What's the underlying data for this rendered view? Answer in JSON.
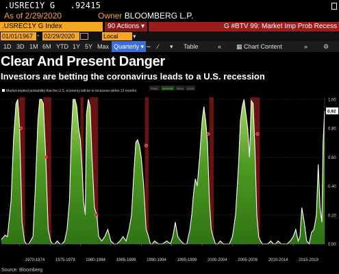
{
  "header": {
    "ticker": ".USREC1Y G",
    "value": ".92415",
    "as_of": "As of 2/29/2020",
    "owner_label": "Owner",
    "owner": "BLOOMBERG L.P."
  },
  "command_bar": {
    "security": ".USREC1Y G Index",
    "actions": "90 Actions",
    "function": "G #BTV 99: Market Imp Prob Recess"
  },
  "dates": {
    "start": "01/01/1967",
    "end": "02/29/2020",
    "currency": "Local CCY"
  },
  "toolbar": {
    "periods": [
      "1D",
      "3D",
      "1M",
      "6M",
      "YTD",
      "1Y",
      "5Y",
      "Max"
    ],
    "frequency": "Quarterly",
    "table": "Table",
    "chart_content": "Chart Content"
  },
  "headline": "Clear And Present Danger",
  "subheadline": "Investors are betting the coronavirus leads to a U.S. recession",
  "legend": {
    "main": "Market-implied probability that the U.S. economy will be in recession within 12 months",
    "tools": [
      "Track",
      "Annotate",
      "News",
      "Zoom"
    ]
  },
  "chart_data": {
    "type": "area",
    "x_ticks": [
      "1970-1974",
      "1975-1979",
      "1980-1984",
      "1985-1989",
      "1990-1994",
      "1995-1999",
      "2000-2004",
      "2005-2009",
      "2010-2014",
      "2015-2019"
    ],
    "y_ticks": [
      "1.00",
      "0.80",
      "0.60",
      "0.40",
      "0.20",
      "0.00"
    ],
    "ylim": [
      0,
      1
    ],
    "last_value_label": "0.92",
    "recessions": [
      [
        1969.9,
        1970.9
      ],
      [
        1973.9,
        1975.2
      ],
      [
        1980.0,
        1980.5
      ],
      [
        1981.5,
        1982.9
      ],
      [
        1990.6,
        1991.2
      ],
      [
        2001.2,
        2001.9
      ],
      [
        2007.9,
        2009.5
      ]
    ],
    "series": [
      {
        "x": [
          1967.0,
          1967.6,
          1968.0,
          1968.6,
          1969.0,
          1969.4,
          1969.7,
          1970.0,
          1970.4,
          1970.8,
          1971.1,
          1971.5,
          1971.8,
          1972.2,
          1972.6,
          1973.0,
          1973.3,
          1973.6,
          1973.9,
          1974.3,
          1974.7,
          1975.1,
          1975.4,
          1975.8,
          1976.2,
          1976.6,
          1977.0,
          1977.4,
          1977.8,
          1978.2,
          1978.5,
          1978.8,
          1979.1,
          1979.4,
          1979.7,
          1980.0,
          1980.3,
          1980.5,
          1980.8,
          1981.0,
          1981.3,
          1981.6,
          1981.9,
          1982.3,
          1982.7,
          1983.0,
          1983.5,
          1984.0,
          1984.5,
          1985.0,
          1985.5,
          1986.0,
          1986.5,
          1987.0,
          1987.5,
          1988.0,
          1988.4,
          1988.8,
          1989.1,
          1989.4,
          1989.7,
          1990.0,
          1990.4,
          1990.8,
          1991.2,
          1991.5,
          1991.8,
          1992.2,
          1992.8,
          1993.5,
          1994.2,
          1994.8,
          1995.2,
          1995.6,
          1996.0,
          1996.5,
          1997.0,
          1997.5,
          1998.0,
          1998.3,
          1998.6,
          1998.9,
          1999.2,
          1999.6,
          2000.0,
          2000.3,
          2000.6,
          2000.9,
          2001.2,
          2001.5,
          2001.8,
          2002.2,
          2002.6,
          2003.0,
          2003.5,
          2004.0,
          2004.5,
          2005.0,
          2005.5,
          2006.0,
          2006.3,
          2006.6,
          2006.9,
          2007.2,
          2007.5,
          2007.8,
          2008.1,
          2008.4,
          2008.7,
          2009.0,
          2009.3,
          2009.6,
          2009.9,
          2010.3,
          2010.8,
          2011.3,
          2011.7,
          2012.1,
          2012.5,
          2013.0,
          2013.5,
          2014.0,
          2014.5,
          2015.0,
          2015.4,
          2015.8,
          2016.1,
          2016.4,
          2016.8,
          2017.2,
          2017.6,
          2018.0,
          2018.4,
          2018.8,
          2019.1,
          2019.4,
          2019.7,
          2019.9,
          2020.15
        ],
        "y": [
          0.03,
          0.06,
          0.05,
          0.3,
          0.72,
          0.97,
          1.0,
          0.8,
          0.15,
          0.02,
          0.0,
          0.0,
          0.02,
          0.05,
          0.4,
          0.85,
          1.0,
          1.0,
          0.97,
          0.6,
          0.1,
          0.02,
          0.0,
          0.0,
          0.02,
          0.0,
          0.0,
          0.02,
          0.1,
          0.3,
          0.75,
          1.0,
          1.0,
          0.95,
          0.8,
          0.72,
          0.5,
          0.3,
          0.2,
          0.9,
          1.0,
          0.95,
          0.6,
          0.25,
          0.2,
          0.05,
          0.02,
          0.05,
          0.1,
          0.02,
          0.0,
          0.0,
          0.02,
          0.05,
          0.02,
          0.1,
          0.2,
          0.5,
          0.7,
          0.72,
          0.68,
          0.6,
          0.4,
          0.1,
          0.05,
          0.0,
          0.0,
          0.02,
          0.0,
          0.0,
          0.02,
          0.0,
          0.05,
          0.15,
          0.05,
          0.02,
          0.0,
          0.0,
          0.1,
          0.2,
          0.35,
          0.45,
          0.4,
          0.6,
          0.85,
          0.95,
          0.85,
          0.7,
          0.3,
          0.1,
          0.05,
          0.0,
          0.0,
          0.02,
          0.0,
          0.0,
          0.0,
          0.05,
          0.2,
          0.55,
          0.85,
          0.95,
          1.0,
          0.9,
          0.8,
          0.6,
          0.99,
          0.97,
          0.65,
          0.2,
          0.05,
          0.02,
          0.0,
          0.0,
          0.0,
          0.02,
          0.0,
          0.0,
          0.02,
          0.0,
          0.0,
          0.0,
          0.02,
          0.05,
          0.1,
          0.02,
          0.05,
          0.25,
          0.15,
          0.02,
          0.0,
          0.08,
          0.1,
          0.2,
          0.55,
          0.25,
          0.15,
          0.7,
          0.92
        ]
      }
    ],
    "markers": [
      {
        "x": 1970.2,
        "y": 0.8
      },
      {
        "x": 1974.3,
        "y": 0.6
      },
      {
        "x": 1982.6,
        "y": 0.2
      },
      {
        "x": 1990.8,
        "y": 0.68
      },
      {
        "x": 2001.0,
        "y": 0.76
      },
      {
        "x": 2009.1,
        "y": 0.76
      }
    ]
  },
  "source": "Source: Bloomberg",
  "colors": {
    "fill": "#3f8a1e",
    "fill_top": "#9ed25c",
    "line": "#ffffff",
    "recession": "#8b1a1a",
    "grid": "#444444"
  }
}
